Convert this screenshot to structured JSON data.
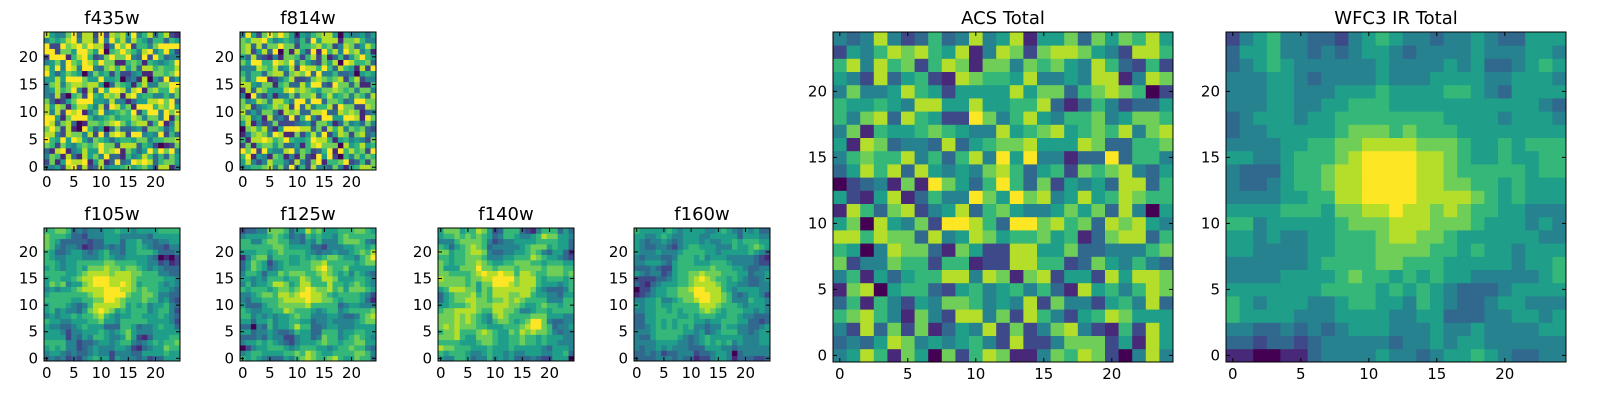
{
  "chart_data": [
    {
      "type": "heatmap",
      "title": "f435w",
      "xticks": [
        0,
        5,
        10,
        15,
        20
      ],
      "yticks": [
        0,
        5,
        10,
        15,
        20
      ],
      "grid_size": 25,
      "seed": 11,
      "smoothness": 0,
      "peak": 0.0
    },
    {
      "type": "heatmap",
      "title": "f814w",
      "xticks": [
        0,
        5,
        10,
        15,
        20
      ],
      "yticks": [
        0,
        5,
        10,
        15,
        20
      ],
      "grid_size": 25,
      "seed": 23,
      "smoothness": 0,
      "peak": 0.15
    },
    {
      "type": "heatmap",
      "title": "f105w",
      "xticks": [
        0,
        5,
        10,
        15,
        20
      ],
      "yticks": [
        0,
        5,
        10,
        15,
        20
      ],
      "grid_size": 25,
      "seed": 37,
      "smoothness": 1,
      "peak": 0.5
    },
    {
      "type": "heatmap",
      "title": "f125w",
      "xticks": [
        0,
        5,
        10,
        15,
        20
      ],
      "yticks": [
        0,
        5,
        10,
        15,
        20
      ],
      "grid_size": 25,
      "seed": 41,
      "smoothness": 1,
      "peak": 0.3
    },
    {
      "type": "heatmap",
      "title": "f140w",
      "xticks": [
        0,
        5,
        10,
        15,
        20
      ],
      "yticks": [
        0,
        5,
        10,
        15,
        20
      ],
      "grid_size": 25,
      "seed": 53,
      "smoothness": 1,
      "peak": 0.2
    },
    {
      "type": "heatmap",
      "title": "f160w",
      "xticks": [
        0,
        5,
        10,
        15,
        20
      ],
      "yticks": [
        0,
        5,
        10,
        15,
        20
      ],
      "grid_size": 25,
      "seed": 67,
      "smoothness": 1,
      "peak": 0.55
    },
    {
      "type": "heatmap",
      "title": "ACS Total",
      "xticks": [
        0,
        5,
        10,
        15,
        20
      ],
      "yticks": [
        0,
        5,
        10,
        15,
        20
      ],
      "grid_size": 25,
      "seed": 79,
      "smoothness": 0,
      "peak": 0.2
    },
    {
      "type": "heatmap",
      "title": "WFC3 IR Total",
      "xticks": [
        0,
        5,
        10,
        15,
        20
      ],
      "yticks": [
        0,
        5,
        10,
        15,
        20
      ],
      "grid_size": 25,
      "seed": 97,
      "smoothness": 1,
      "peak": 0.85
    }
  ],
  "colors": {
    "viridis": [
      "#440154",
      "#482878",
      "#3e4989",
      "#31688e",
      "#26828e",
      "#1f9e89",
      "#35b779",
      "#6ece58",
      "#b5de2b",
      "#fde725"
    ]
  }
}
